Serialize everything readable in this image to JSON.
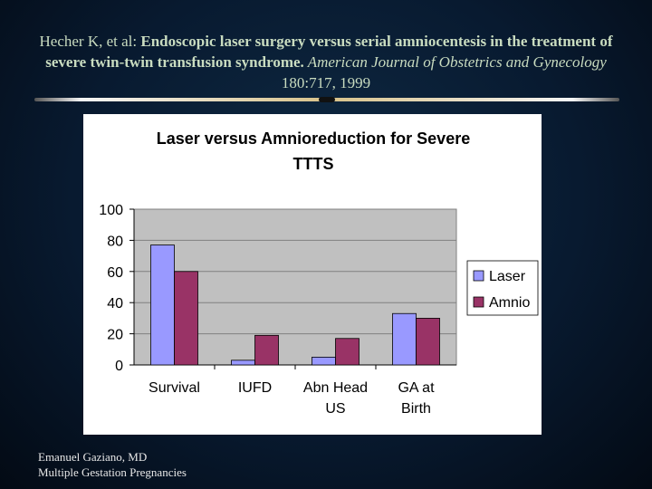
{
  "reference": {
    "authors": "Hecher K, et al: ",
    "title": "Endoscopic laser surgery versus serial amniocentesis in the treatment of severe twin-twin transfusion syndrome.",
    "journal": " American Journal of Obstetrics and Gynecology",
    "citation": " 180:717, 1999"
  },
  "footer": {
    "line1": "Emanuel Gaziano, MD",
    "line2": "Multiple Gestation Pregnancies"
  },
  "colors": {
    "laser": "#9999ff",
    "amnio": "#993366",
    "plot_bg": "#c0c0c0"
  },
  "chart_data": {
    "type": "bar",
    "title_line1": "Laser versus Amnioreduction for Severe",
    "title_line2": "TTTS",
    "categories": [
      [
        "Survival"
      ],
      [
        "IUFD"
      ],
      [
        "Abn Head",
        "US"
      ],
      [
        "GA at",
        "Birth"
      ]
    ],
    "series": [
      {
        "name": "Laser",
        "values": [
          77,
          3,
          5,
          33
        ]
      },
      {
        "name": "Amnio",
        "values": [
          60,
          19,
          17,
          30
        ]
      }
    ],
    "ylim": [
      0,
      100
    ],
    "yticks": [
      0,
      20,
      40,
      60,
      80,
      100
    ],
    "grid": true,
    "legend": "right"
  }
}
